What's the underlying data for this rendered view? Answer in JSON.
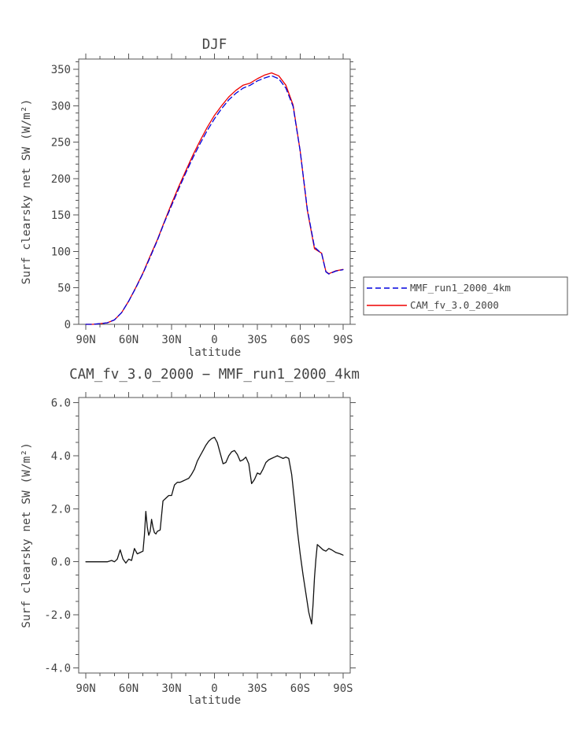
{
  "figure": {
    "background": "#ffffff",
    "axis_color": "#555555",
    "text_color": "#444444"
  },
  "chart_data": [
    {
      "type": "line",
      "title": "DJF",
      "xlabel": "latitude",
      "ylabel": "Surf clearsky net SW (W/m²)",
      "xlim": [
        95,
        -95
      ],
      "ylim": [
        0,
        364
      ],
      "xtick_values": [
        90,
        60,
        30,
        0,
        -30,
        -60,
        -90
      ],
      "xtick_labels": [
        "90N",
        "60N",
        "30N",
        "0",
        "30S",
        "60S",
        "90S"
      ],
      "ytick_values": [
        0,
        50,
        100,
        150,
        200,
        250,
        300,
        350
      ],
      "ytick_labels": [
        "0",
        "50",
        "100",
        "150",
        "200",
        "250",
        "300",
        "350"
      ],
      "x_minor_step": 10,
      "y_minor_step": 10,
      "grid": false,
      "legend": {
        "position": "outside-right-bottom",
        "border": true
      },
      "series": [
        {
          "name": "MMF_run1_2000_4km",
          "color": "#0000dd",
          "style": "dashed",
          "x": [
            90,
            85,
            80,
            75,
            70,
            65,
            60,
            55,
            50,
            45,
            40,
            35,
            30,
            25,
            20,
            15,
            10,
            5,
            0,
            -5,
            -10,
            -15,
            -20,
            -25,
            -30,
            -35,
            -40,
            -45,
            -50,
            -55,
            -60,
            -65,
            -70,
            -75,
            -78,
            -80,
            -85,
            -90
          ],
          "values": [
            0,
            0,
            1,
            2,
            6,
            16,
            32,
            50,
            70,
            92,
            115,
            140,
            163,
            186,
            208,
            229,
            248,
            266,
            282,
            296,
            308,
            317,
            324,
            328,
            334,
            338,
            341,
            337,
            324,
            299,
            238,
            158,
            106,
            97,
            72,
            69,
            73,
            75
          ]
        },
        {
          "name": "CAM_fv_3.0_2000",
          "color": "#ee0000",
          "style": "solid",
          "x": [
            90,
            85,
            80,
            75,
            70,
            65,
            60,
            55,
            50,
            45,
            40,
            35,
            30,
            25,
            20,
            15,
            10,
            5,
            0,
            -5,
            -10,
            -15,
            -20,
            -25,
            -30,
            -35,
            -40,
            -45,
            -50,
            -55,
            -60,
            -65,
            -70,
            -75,
            -78,
            -80,
            -85,
            -90
          ],
          "values": [
            0,
            0,
            1,
            2,
            6,
            16,
            32,
            50.5,
            70.5,
            93.5,
            116,
            141,
            165.5,
            189,
            211,
            232.5,
            252,
            270.5,
            286.7,
            300,
            312,
            321,
            328,
            331,
            337,
            342,
            345,
            341,
            328,
            301,
            238,
            156.5,
            103.7,
            97.5,
            72.5,
            69.5,
            73.4,
            75.3
          ]
        }
      ]
    },
    {
      "type": "line",
      "title": "CAM_fv_3.0_2000 − MMF_run1_2000_4km",
      "xlabel": "latitude",
      "ylabel": "Surf clearsky net SW (W/m²)",
      "xlim": [
        95,
        -95
      ],
      "ylim": [
        -4.2,
        6.2
      ],
      "xtick_values": [
        90,
        60,
        30,
        0,
        -30,
        -60,
        -90
      ],
      "xtick_labels": [
        "90N",
        "60N",
        "30N",
        "0",
        "30S",
        "60S",
        "90S"
      ],
      "ytick_values": [
        -4,
        -2,
        0,
        2,
        4,
        6
      ],
      "ytick_labels": [
        "-4.0",
        "-2.0",
        "0.0",
        "2.0",
        "4.0",
        "6.0"
      ],
      "x_minor_step": 10,
      "y_minor_step": 0.5,
      "grid": false,
      "series": [
        {
          "name": "CAM_fv_3.0_2000 − MMF_run1_2000_4km",
          "color": "#111111",
          "style": "solid",
          "x": [
            90,
            85,
            80,
            75,
            72,
            70,
            68,
            66,
            64,
            62,
            60,
            58,
            56,
            54,
            52,
            50,
            49,
            48,
            47,
            46,
            45,
            44,
            43,
            42,
            41,
            40,
            38,
            36,
            34,
            32,
            30,
            28,
            26,
            24,
            22,
            20,
            18,
            16,
            14,
            12,
            10,
            8,
            6,
            4,
            2,
            0,
            -2,
            -4,
            -6,
            -8,
            -10,
            -12,
            -14,
            -16,
            -18,
            -20,
            -22,
            -24,
            -26,
            -28,
            -30,
            -32,
            -34,
            -36,
            -38,
            -40,
            -42,
            -44,
            -46,
            -48,
            -50,
            -52,
            -54,
            -56,
            -58,
            -60,
            -62,
            -64,
            -66,
            -68,
            -69,
            -70,
            -71,
            -72,
            -74,
            -76,
            -78,
            -80,
            -82,
            -85,
            -88,
            -90
          ],
          "values": [
            0.0,
            0.0,
            0.0,
            0.0,
            0.05,
            0.0,
            0.1,
            0.45,
            0.1,
            -0.05,
            0.1,
            0.05,
            0.5,
            0.3,
            0.35,
            0.4,
            1.0,
            1.9,
            1.3,
            1.0,
            1.15,
            1.6,
            1.3,
            1.1,
            1.05,
            1.15,
            1.2,
            2.3,
            2.4,
            2.5,
            2.5,
            2.9,
            3.0,
            3.0,
            3.05,
            3.1,
            3.15,
            3.3,
            3.5,
            3.8,
            4.0,
            4.2,
            4.4,
            4.55,
            4.65,
            4.7,
            4.5,
            4.1,
            3.7,
            3.75,
            4.0,
            4.15,
            4.2,
            4.05,
            3.8,
            3.85,
            3.95,
            3.7,
            2.95,
            3.1,
            3.35,
            3.3,
            3.5,
            3.75,
            3.85,
            3.9,
            3.95,
            4.0,
            3.95,
            3.9,
            3.95,
            3.9,
            3.3,
            2.3,
            1.2,
            0.3,
            -0.5,
            -1.2,
            -1.9,
            -2.35,
            -1.6,
            -0.6,
            0.1,
            0.65,
            0.55,
            0.45,
            0.4,
            0.5,
            0.45,
            0.35,
            0.3,
            0.25
          ]
        }
      ]
    }
  ]
}
